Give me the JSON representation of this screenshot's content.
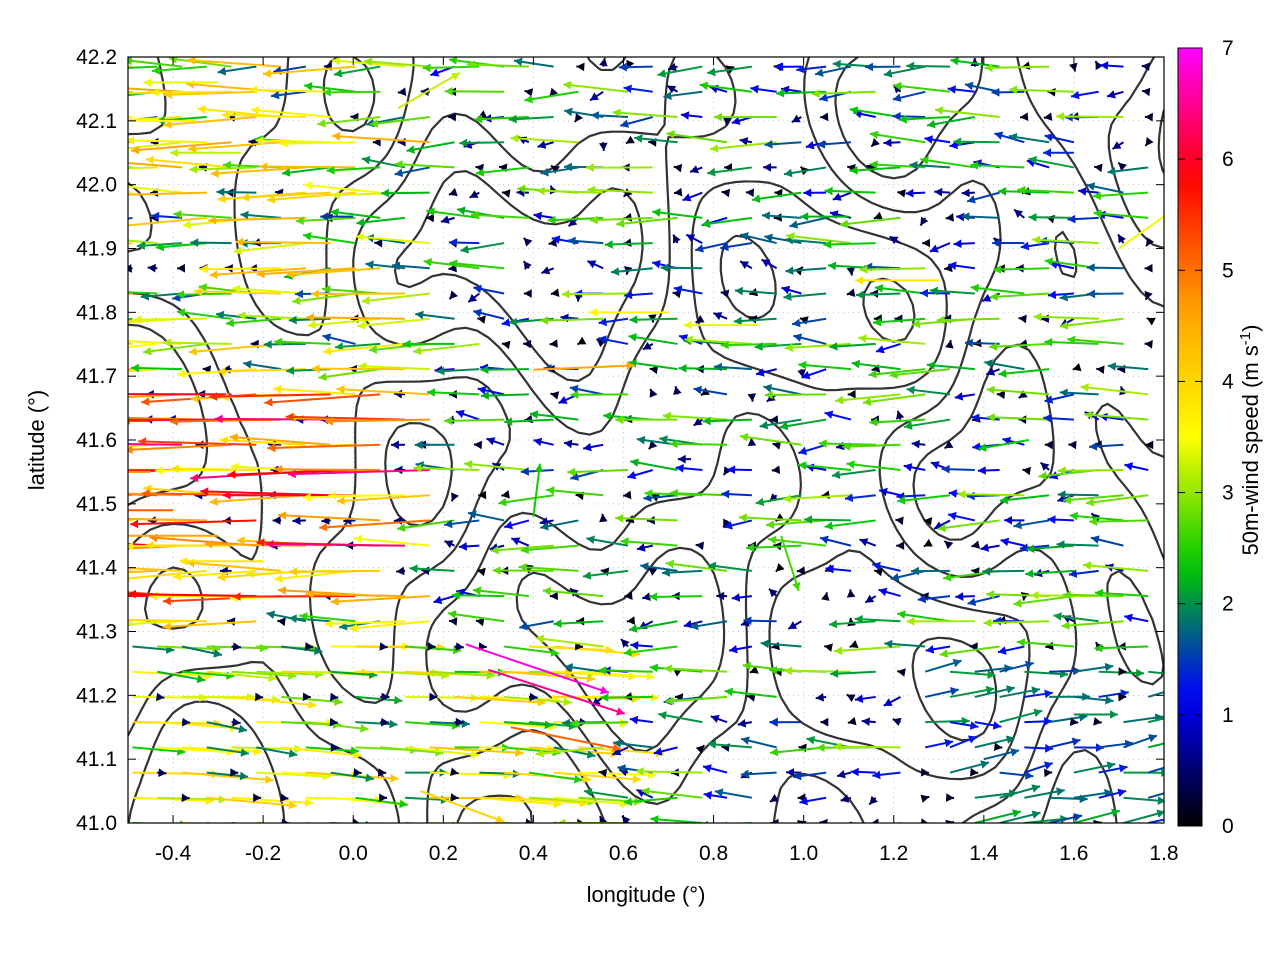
{
  "chart_data": {
    "type": "quiver",
    "xlabel": "longitude (°)",
    "ylabel": "latitude (°)",
    "xlim": [
      -0.5,
      1.8
    ],
    "ylim": [
      41.0,
      42.2
    ],
    "xticks": [
      "-0.4",
      "-0.2",
      "0.0",
      "0.2",
      "0.4",
      "0.6",
      "0.8",
      "1.0",
      "1.2",
      "1.4",
      "1.6",
      "1.8"
    ],
    "xtick_values": [
      -0.4,
      -0.2,
      0.0,
      0.2,
      0.4,
      0.6,
      0.8,
      1.0,
      1.2,
      1.4,
      1.6,
      1.8
    ],
    "yticks": [
      "41.0",
      "41.1",
      "41.2",
      "41.3",
      "41.4",
      "41.5",
      "41.6",
      "41.7",
      "41.8",
      "41.9",
      "42.0",
      "42.1",
      "42.2"
    ],
    "ytick_values": [
      41.0,
      41.1,
      41.2,
      41.3,
      41.4,
      41.5,
      41.6,
      41.7,
      41.8,
      41.9,
      42.0,
      42.1,
      42.2
    ],
    "grid": true,
    "colorbar": {
      "label_main": "50m-wind speed (m s",
      "label_sup": "-1",
      "label_end": ")",
      "range": [
        0,
        7
      ],
      "ticks": [
        "0",
        "1",
        "2",
        "3",
        "4",
        "5",
        "6",
        "7"
      ],
      "tick_values": [
        0,
        1,
        2,
        3,
        4,
        5,
        6,
        7
      ],
      "colors": [
        "#000000",
        "#0000ff",
        "#00c800",
        "#ffff00",
        "#ffa000",
        "#ff0000",
        "#ff00ff"
      ]
    },
    "contour_color": "#333333",
    "wind_vectors_sample": [
      {
        "lon": -0.45,
        "lat": 41.55,
        "u": -4.8,
        "v": 0.0
      },
      {
        "lon": -0.45,
        "lat": 41.63,
        "u": -5.6,
        "v": 0.0
      },
      {
        "lon": -0.4,
        "lat": 41.49,
        "u": -5.2,
        "v": 0.0
      },
      {
        "lon": -0.3,
        "lat": 41.45,
        "u": -4.6,
        "v": 0.0
      },
      {
        "lon": -0.2,
        "lat": 41.41,
        "u": -3.8,
        "v": 0.0
      },
      {
        "lon": -0.35,
        "lat": 42.1,
        "u": -3.5,
        "v": 0.0
      },
      {
        "lon": -0.25,
        "lat": 42.05,
        "u": -3.2,
        "v": 0.0
      },
      {
        "lon": -0.3,
        "lat": 42.16,
        "u": -3.4,
        "v": 0.0
      },
      {
        "lon": 0.1,
        "lat": 42.12,
        "u": 2.8,
        "v": 1.6
      },
      {
        "lon": 0.4,
        "lat": 41.71,
        "u": 4.6,
        "v": 0.2
      },
      {
        "lon": 0.7,
        "lat": 41.8,
        "u": -3.6,
        "v": 0.0
      },
      {
        "lon": 0.9,
        "lat": 41.78,
        "u": -3.4,
        "v": 0.0
      },
      {
        "lon": 0.25,
        "lat": 41.28,
        "u": 6.5,
        "v": -2.2
      },
      {
        "lon": 0.3,
        "lat": 41.24,
        "u": 6.2,
        "v": -2.0
      },
      {
        "lon": 0.35,
        "lat": 41.15,
        "u": 5.0,
        "v": -1.0
      },
      {
        "lon": 0.15,
        "lat": 41.05,
        "u": 3.8,
        "v": -1.4
      },
      {
        "lon": 0.95,
        "lat": 41.45,
        "u": 0.8,
        "v": -2.5
      },
      {
        "lon": 0.4,
        "lat": 41.48,
        "u": 0.3,
        "v": 2.4
      },
      {
        "lon": 1.3,
        "lat": 41.85,
        "u": -3.8,
        "v": 0.0
      },
      {
        "lon": 1.6,
        "lat": 41.17,
        "u": 2.0,
        "v": 0.0
      },
      {
        "lon": 1.4,
        "lat": 41.1,
        "u": 1.6,
        "v": 0.4
      },
      {
        "lon": 0.75,
        "lat": 41.57,
        "u": -0.6,
        "v": 0.0
      },
      {
        "lon": 0.0,
        "lat": 41.95,
        "u": -1.5,
        "v": 0.0
      },
      {
        "lon": 1.1,
        "lat": 41.95,
        "u": -2.2,
        "v": 0.0
      },
      {
        "lon": 1.6,
        "lat": 42.05,
        "u": -1.4,
        "v": 0.0
      },
      {
        "lon": 1.5,
        "lat": 41.6,
        "u": -2.3,
        "v": -0.4
      },
      {
        "lon": 1.7,
        "lat": 41.9,
        "u": 2.8,
        "v": 2.0
      },
      {
        "lon": 0.6,
        "lat": 41.0,
        "u": -3.0,
        "v": 0.0
      }
    ]
  }
}
